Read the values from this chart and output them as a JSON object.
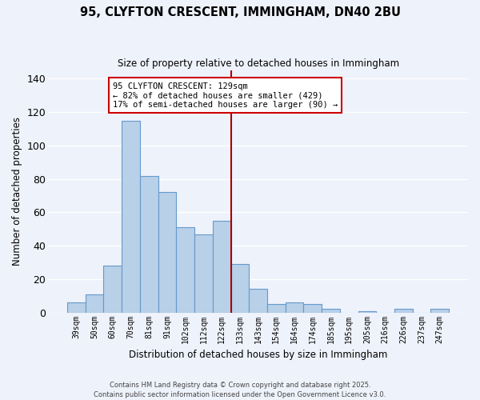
{
  "title": "95, CLYFTON CRESCENT, IMMINGHAM, DN40 2BU",
  "subtitle": "Size of property relative to detached houses in Immingham",
  "xlabel": "Distribution of detached houses by size in Immingham",
  "ylabel": "Number of detached properties",
  "categories": [
    "39sqm",
    "50sqm",
    "60sqm",
    "70sqm",
    "81sqm",
    "91sqm",
    "102sqm",
    "112sqm",
    "122sqm",
    "133sqm",
    "143sqm",
    "154sqm",
    "164sqm",
    "174sqm",
    "185sqm",
    "195sqm",
    "205sqm",
    "216sqm",
    "226sqm",
    "237sqm",
    "247sqm"
  ],
  "values": [
    6,
    11,
    28,
    115,
    82,
    72,
    51,
    47,
    55,
    29,
    14,
    5,
    6,
    5,
    2,
    0,
    1,
    0,
    2,
    0,
    2
  ],
  "bar_color": "#b8d0e8",
  "bar_edge_color": "#6699cc",
  "bg_color": "#eef2fb",
  "grid_color": "#ffffff",
  "vline_x": 8.5,
  "vline_color": "#aa0000",
  "annotation_line1": "95 CLYFTON CRESCENT: 129sqm",
  "annotation_line2": "← 82% of detached houses are smaller (429)",
  "annotation_line3": "17% of semi-detached houses are larger (90) →",
  "annotation_box_color": "#ffffff",
  "annotation_box_edge_color": "#cc0000",
  "ylim": [
    0,
    145
  ],
  "yticks": [
    0,
    20,
    40,
    60,
    80,
    100,
    120,
    140
  ],
  "footnote1": "Contains HM Land Registry data © Crown copyright and database right 2025.",
  "footnote2": "Contains public sector information licensed under the Open Government Licence v3.0."
}
